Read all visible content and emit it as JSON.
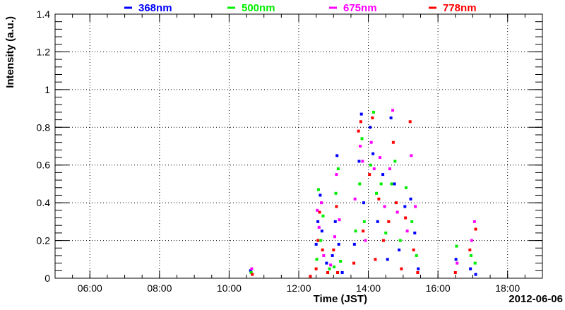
{
  "chart_data": {
    "type": "scatter",
    "title": "",
    "xlabel": "Time (JST)",
    "ylabel": "Intensity (a.u.)",
    "date_label": "2012-06-06",
    "x_unit": "time of day (JST, hours)",
    "xlim": [
      "05:00",
      "19:00"
    ],
    "ylim": [
      0,
      1.4
    ],
    "x_ticks": [
      "06:00",
      "08:00",
      "10:00",
      "12:00",
      "14:00",
      "16:00",
      "18:00"
    ],
    "y_ticks": [
      "0",
      "0.2",
      "0.4",
      "0.6",
      "0.8",
      "1",
      "1.2",
      "1.4"
    ],
    "grid": true,
    "legend_position": "top",
    "series": [
      {
        "name": "368nm",
        "color": "#0000ff",
        "points": [
          [
            "10:37",
            0.04
          ],
          [
            "12:30",
            0.18
          ],
          [
            "12:33",
            0.3
          ],
          [
            "12:37",
            0.44
          ],
          [
            "12:40",
            0.25
          ],
          [
            "12:48",
            0.08
          ],
          [
            "12:58",
            0.12
          ],
          [
            "13:03",
            0.3
          ],
          [
            "13:06",
            0.65
          ],
          [
            "13:09",
            0.18
          ],
          [
            "13:15",
            0.03
          ],
          [
            "13:36",
            0.18
          ],
          [
            "13:44",
            0.62
          ],
          [
            "13:48",
            0.87
          ],
          [
            "13:52",
            0.4
          ],
          [
            "14:03",
            0.8
          ],
          [
            "14:08",
            0.66
          ],
          [
            "14:16",
            0.3
          ],
          [
            "14:25",
            0.55
          ],
          [
            "14:33",
            0.1
          ],
          [
            "14:39",
            0.85
          ],
          [
            "14:45",
            0.5
          ],
          [
            "14:53",
            0.15
          ],
          [
            "15:03",
            0.38
          ],
          [
            "15:13",
            0.42
          ],
          [
            "15:20",
            0.24
          ],
          [
            "15:26",
            0.05
          ],
          [
            "16:31",
            0.1
          ],
          [
            "16:56",
            0.05
          ],
          [
            "17:05",
            0.02
          ]
        ]
      },
      {
        "name": "500nm",
        "color": "#00ee00",
        "points": [
          [
            "10:38",
            0.03
          ],
          [
            "12:31",
            0.1
          ],
          [
            "12:34",
            0.47
          ],
          [
            "12:38",
            0.2
          ],
          [
            "12:42",
            0.33
          ],
          [
            "12:53",
            0.05
          ],
          [
            "13:01",
            0.06
          ],
          [
            "13:04",
            0.45
          ],
          [
            "13:08",
            0.58
          ],
          [
            "13:12",
            0.09
          ],
          [
            "13:38",
            0.25
          ],
          [
            "13:45",
            0.5
          ],
          [
            "13:49",
            0.74
          ],
          [
            "13:53",
            0.3
          ],
          [
            "14:04",
            0.6
          ],
          [
            "14:09",
            0.88
          ],
          [
            "14:14",
            0.45
          ],
          [
            "14:22",
            0.5
          ],
          [
            "14:30",
            0.24
          ],
          [
            "14:40",
            0.5
          ],
          [
            "14:46",
            0.62
          ],
          [
            "14:55",
            0.2
          ],
          [
            "15:05",
            0.48
          ],
          [
            "15:15",
            0.3
          ],
          [
            "15:23",
            0.12
          ],
          [
            "16:32",
            0.17
          ],
          [
            "16:57",
            0.12
          ],
          [
            "17:04",
            0.08
          ]
        ]
      },
      {
        "name": "675nm",
        "color": "#ff00ff",
        "points": [
          [
            "10:39",
            0.05
          ],
          [
            "12:32",
            0.36
          ],
          [
            "12:35",
            0.27
          ],
          [
            "12:39",
            0.4
          ],
          [
            "12:43",
            0.12
          ],
          [
            "12:55",
            0.07
          ],
          [
            "13:02",
            0.22
          ],
          [
            "13:05",
            0.55
          ],
          [
            "13:10",
            0.31
          ],
          [
            "13:37",
            0.42
          ],
          [
            "13:46",
            0.7
          ],
          [
            "13:50",
            0.62
          ],
          [
            "13:55",
            0.2
          ],
          [
            "14:05",
            0.72
          ],
          [
            "14:10",
            0.58
          ],
          [
            "14:20",
            0.64
          ],
          [
            "14:28",
            0.38
          ],
          [
            "14:37",
            0.58
          ],
          [
            "14:42",
            0.89
          ],
          [
            "14:50",
            0.35
          ],
          [
            "15:07",
            0.25
          ],
          [
            "15:14",
            0.65
          ],
          [
            "15:21",
            0.38
          ],
          [
            "16:33",
            0.08
          ],
          [
            "16:58",
            0.2
          ],
          [
            "17:03",
            0.3
          ]
        ]
      },
      {
        "name": "778nm",
        "color": "#ff0000",
        "points": [
          [
            "10:40",
            0.02
          ],
          [
            "12:20",
            0.01
          ],
          [
            "12:30",
            0.05
          ],
          [
            "12:33",
            0.2
          ],
          [
            "12:36",
            0.35
          ],
          [
            "12:41",
            0.15
          ],
          [
            "12:50",
            0.03
          ],
          [
            "13:00",
            0.15
          ],
          [
            "13:05",
            0.38
          ],
          [
            "13:07",
            0.03
          ],
          [
            "13:35",
            0.08
          ],
          [
            "13:43",
            0.78
          ],
          [
            "13:47",
            0.83
          ],
          [
            "13:51",
            0.25
          ],
          [
            "14:02",
            0.55
          ],
          [
            "14:07",
            0.85
          ],
          [
            "14:12",
            0.1
          ],
          [
            "14:18",
            0.42
          ],
          [
            "14:26",
            0.2
          ],
          [
            "14:35",
            0.3
          ],
          [
            "14:43",
            0.72
          ],
          [
            "14:48",
            0.4
          ],
          [
            "14:57",
            0.05
          ],
          [
            "15:04",
            0.32
          ],
          [
            "15:12",
            0.83
          ],
          [
            "15:18",
            0.15
          ],
          [
            "15:25",
            0.03
          ],
          [
            "16:30",
            0.03
          ],
          [
            "16:55",
            0.15
          ],
          [
            "17:05",
            0.26
          ]
        ]
      }
    ]
  }
}
